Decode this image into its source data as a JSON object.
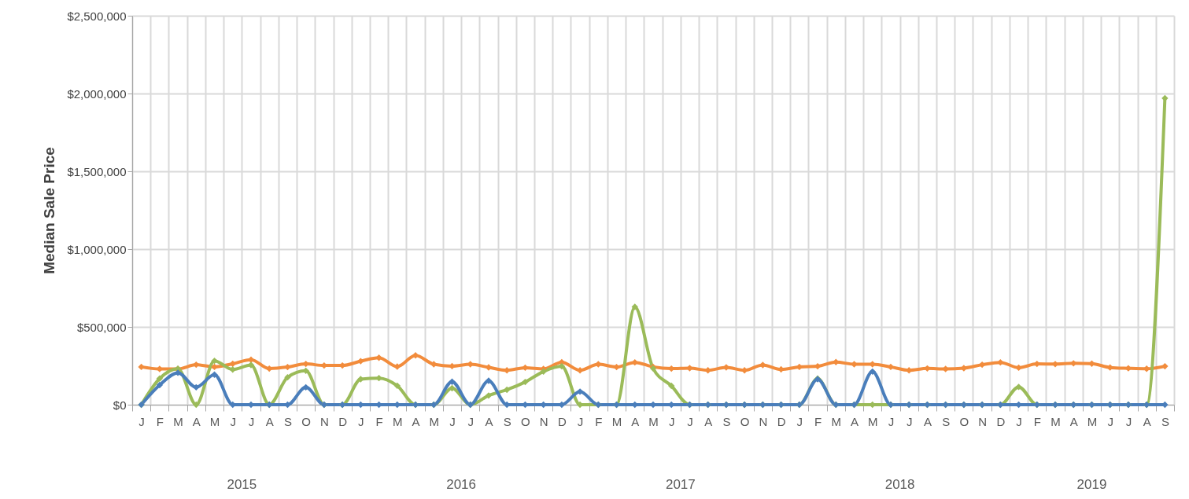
{
  "chart_data": {
    "type": "line",
    "ylabel": "Median Sale Price",
    "categories": [
      "J",
      "F",
      "M",
      "A",
      "M",
      "J",
      "J",
      "A",
      "S",
      "O",
      "N",
      "D",
      "J",
      "F",
      "M",
      "A",
      "M",
      "J",
      "J",
      "A",
      "S",
      "O",
      "N",
      "D",
      "J",
      "F",
      "M",
      "A",
      "M",
      "J",
      "J",
      "A",
      "S",
      "O",
      "N",
      "D",
      "J",
      "F",
      "M",
      "A",
      "M",
      "J",
      "J",
      "A",
      "S",
      "O",
      "N",
      "D",
      "J",
      "F",
      "M",
      "A",
      "M",
      "J",
      "J",
      "A",
      "S"
    ],
    "series": [
      {
        "color": "#f28c3c",
        "values": [
          243000,
          230000,
          230000,
          257000,
          243000,
          263000,
          289000,
          232000,
          242000,
          262000,
          252000,
          252000,
          280000,
          302000,
          245000,
          317000,
          260000,
          248000,
          260000,
          240000,
          221000,
          238000,
          230000,
          273000,
          221000,
          260000,
          242000,
          272000,
          243000,
          232000,
          235000,
          221000,
          240000,
          221000,
          255000,
          227000,
          243000,
          247000,
          274000,
          260000,
          260000,
          243000,
          221000,
          233000,
          230000,
          235000,
          257000,
          272000,
          238000,
          262000,
          261000,
          266000,
          264000,
          239000,
          234000,
          231000,
          247000
        ]
      },
      {
        "color": "#9bbb59",
        "values": [
          0,
          168000,
          231000,
          0,
          282000,
          226000,
          255000,
          0,
          176000,
          218000,
          0,
          0,
          164000,
          171000,
          122000,
          0,
          0,
          106000,
          0,
          59000,
          96000,
          146000,
          213000,
          247000,
          0,
          0,
          0,
          629000,
          233000,
          121000,
          0,
          0,
          0,
          0,
          0,
          0,
          0,
          168000,
          0,
          0,
          0,
          0,
          0,
          0,
          0,
          0,
          0,
          0,
          114000,
          0,
          0,
          0,
          0,
          0,
          0,
          0,
          1970000
        ]
      },
      {
        "color": "#4a7ebb",
        "values": [
          0,
          126000,
          205000,
          112000,
          193000,
          0,
          0,
          0,
          0,
          112000,
          0,
          0,
          0,
          0,
          0,
          0,
          0,
          148000,
          0,
          154000,
          0,
          0,
          0,
          0,
          84000,
          0,
          0,
          0,
          0,
          0,
          0,
          0,
          0,
          0,
          0,
          0,
          0,
          164000,
          0,
          0,
          213000,
          0,
          0,
          0,
          0,
          0,
          0,
          0,
          0,
          0,
          0,
          0,
          0,
          0,
          0,
          0,
          0
        ]
      }
    ],
    "ylim": [
      0,
      2500000
    ],
    "yticks": [
      {
        "value": 0,
        "label": "$0"
      },
      {
        "value": 500000,
        "label": "$500,000"
      },
      {
        "value": 1000000,
        "label": "$1,000,000"
      },
      {
        "value": 1500000,
        "label": "$1,500,000"
      },
      {
        "value": 2000000,
        "label": "$2,000,000"
      },
      {
        "value": 2500000,
        "label": "$2,500,000"
      }
    ],
    "grid": true,
    "marker": "diamond",
    "line_style": "solid",
    "annotations": [
      "2015",
      "2016",
      "2017",
      "2018",
      "2019"
    ]
  }
}
